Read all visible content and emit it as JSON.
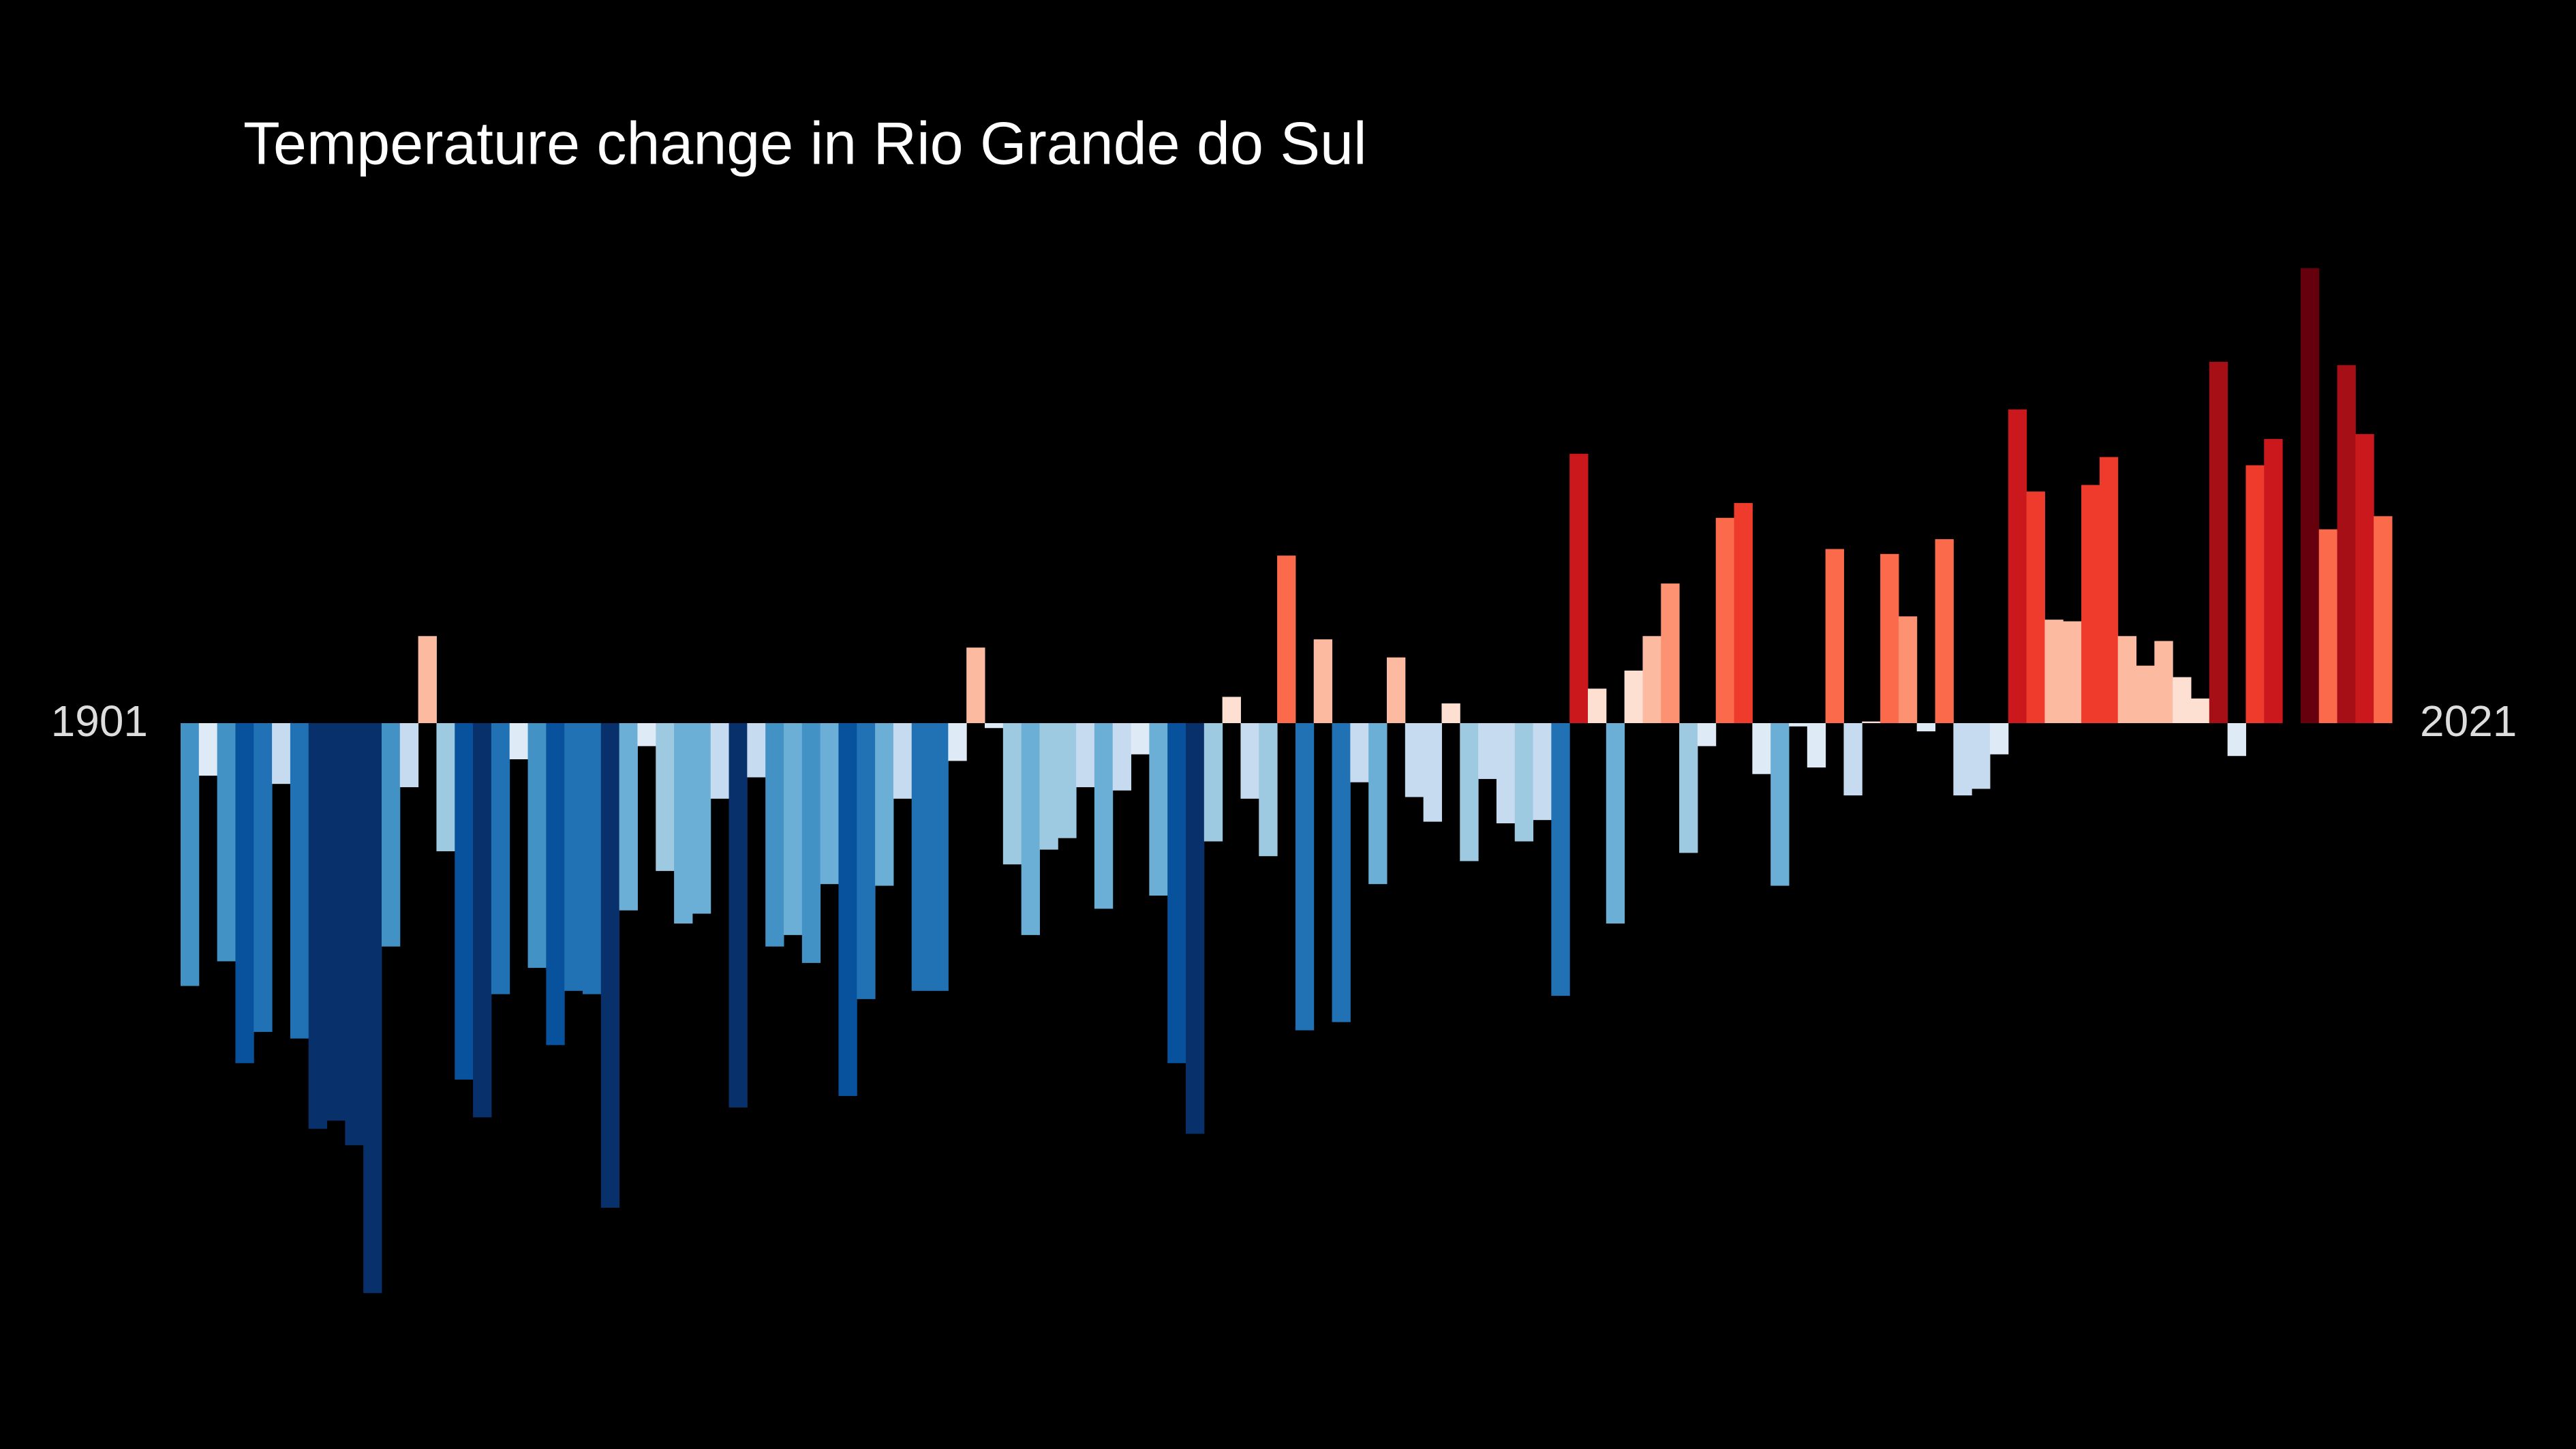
{
  "chart_data": {
    "type": "bar",
    "title": "Temperature change in Rio Grande do Sul",
    "colormap": "RdBu_r",
    "categories": [
      "1901",
      null,
      null,
      null,
      null,
      null,
      null,
      null,
      null,
      null,
      null,
      null,
      null,
      null,
      null,
      null,
      null,
      null,
      null,
      null,
      null,
      null,
      null,
      null,
      null,
      null,
      null,
      null,
      null,
      null,
      null,
      null,
      null,
      null,
      null,
      null,
      null,
      null,
      null,
      null,
      null,
      null,
      null,
      null,
      null,
      null,
      null,
      null,
      null,
      null,
      null,
      null,
      null,
      null,
      null,
      null,
      null,
      null,
      null,
      null,
      null,
      null,
      null,
      null,
      null,
      null,
      null,
      null,
      null,
      null,
      null,
      null,
      null,
      null,
      null,
      null,
      null,
      null,
      null,
      null,
      null,
      null,
      null,
      null,
      null,
      null,
      null,
      null,
      null,
      null,
      null,
      null,
      null,
      null,
      null,
      null,
      null,
      null,
      null,
      null,
      null,
      null,
      null,
      null,
      null,
      null,
      null,
      null,
      null,
      null,
      null,
      null,
      null,
      null,
      null,
      null,
      null,
      null,
      null,
      null,
      "2021"
    ],
    "values": [
      -1.6,
      -0.32,
      -1.45,
      -2.07,
      -1.88,
      -0.37,
      -1.92,
      -2.47,
      -2.42,
      -2.57,
      -3.47,
      -1.36,
      -0.39,
      0.53,
      -0.78,
      -2.17,
      -2.4,
      -1.65,
      -0.22,
      -1.49,
      -1.96,
      -1.63,
      -1.65,
      -2.95,
      -1.14,
      -0.14,
      -0.9,
      -1.22,
      -1.16,
      -0.46,
      -2.34,
      -0.33,
      -1.36,
      -1.29,
      -1.46,
      -0.98,
      -2.27,
      -1.68,
      -0.99,
      -0.46,
      -1.63,
      -1.63,
      -0.23,
      0.46,
      -0.03,
      -0.86,
      -1.29,
      -0.77,
      -0.7,
      -0.39,
      -1.13,
      -0.41,
      -0.19,
      -1.05,
      -2.07,
      -2.5,
      -0.72,
      0.16,
      -0.46,
      -0.81,
      1.02,
      -1.87,
      0.51,
      -1.82,
      -0.36,
      -0.98,
      0.4,
      -0.45,
      -0.6,
      0.12,
      -0.84,
      -0.34,
      -0.61,
      -0.72,
      -0.59,
      -1.66,
      1.64,
      0.21,
      -1.22,
      0.32,
      0.53,
      0.85,
      -0.79,
      -0.14,
      1.25,
      1.34,
      -0.31,
      -0.99,
      -0.02,
      -0.27,
      1.06,
      -0.44,
      0.01,
      1.03,
      0.65,
      -0.05,
      1.12,
      -0.44,
      -0.4,
      -0.19,
      1.91,
      1.41,
      0.63,
      0.62,
      1.45,
      1.62,
      0.53,
      0.35,
      0.5,
      0.28,
      0.15,
      2.2,
      -0.2,
      1.57,
      1.73,
      0.0,
      2.77,
      1.18,
      2.18,
      1.76,
      1.26
    ]
  }
}
